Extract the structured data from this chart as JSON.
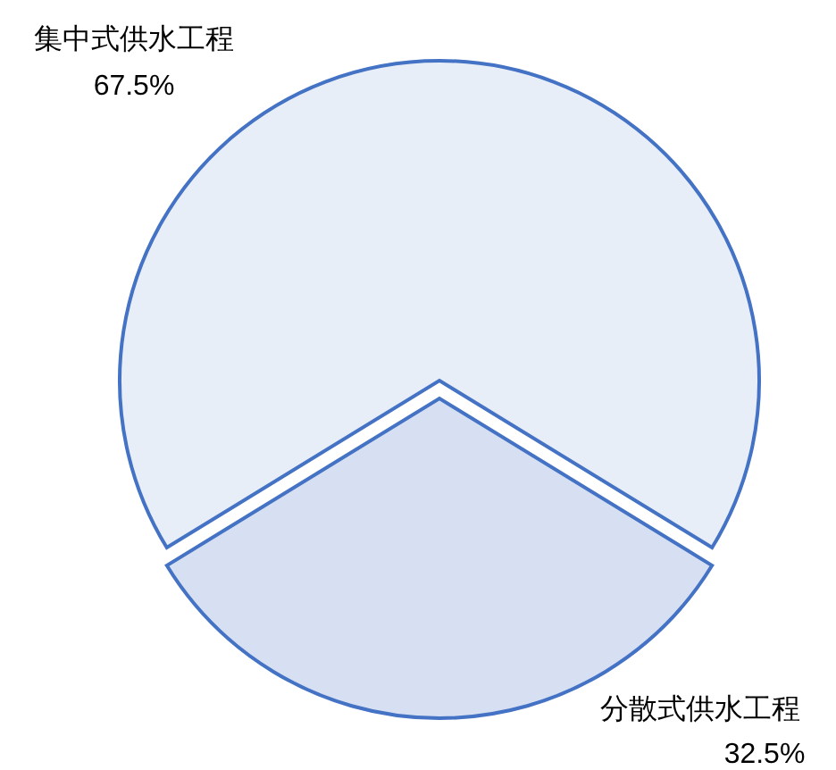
{
  "chart_data": {
    "type": "pie",
    "categories": [
      "集中式供水工程",
      "分散式供水工程"
    ],
    "values": [
      67.5,
      32.5
    ],
    "colors": [
      "#4472c4",
      "#4472c4"
    ],
    "value_labels": [
      "67.5%",
      "32.5%"
    ]
  }
}
